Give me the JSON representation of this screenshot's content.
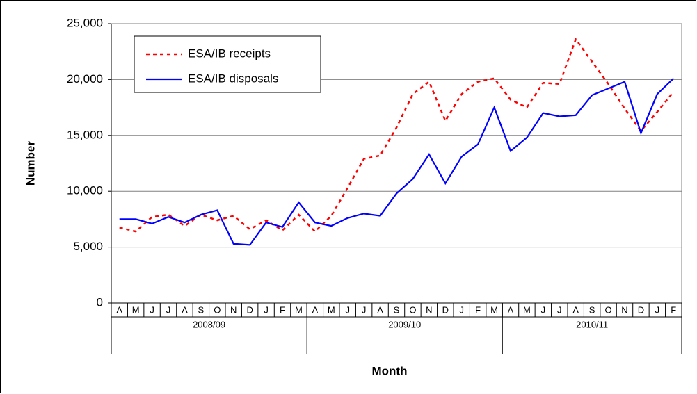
{
  "chart_data": {
    "type": "line",
    "xlabel": "Month",
    "ylabel": "Number",
    "categories": [
      "A",
      "M",
      "J",
      "J",
      "A",
      "S",
      "O",
      "N",
      "D",
      "J",
      "F",
      "M",
      "A",
      "M",
      "J",
      "J",
      "A",
      "S",
      "O",
      "N",
      "D",
      "J",
      "F",
      "M",
      "A",
      "M",
      "J",
      "J",
      "A",
      "S",
      "O",
      "N",
      "D",
      "J",
      "F"
    ],
    "x_groups": [
      {
        "label": "2008/09",
        "span": 12
      },
      {
        "label": "2009/10",
        "span": 12
      },
      {
        "label": "2010/11",
        "span": 11
      }
    ],
    "series": [
      {
        "name": "ESA/IB receipts",
        "color": "#ff0000",
        "dash": true,
        "values": [
          6750,
          6400,
          7700,
          7900,
          6900,
          7900,
          7400,
          7800,
          6600,
          7400,
          6500,
          7900,
          6400,
          7800,
          10300,
          12900,
          13200,
          15700,
          18700,
          19800,
          16300,
          18700,
          19800,
          20100,
          18200,
          17500,
          19700,
          19600,
          23600,
          21600,
          19600,
          17400,
          15400,
          17100,
          18900
        ]
      },
      {
        "name": "ESA/IB disposals",
        "color": "#0000ff",
        "dash": false,
        "values": [
          7500,
          7500,
          7100,
          7700,
          7200,
          7900,
          8300,
          5300,
          5200,
          7200,
          6800,
          9000,
          7200,
          6900,
          7600,
          8000,
          7800,
          9800,
          11100,
          13300,
          10700,
          13100,
          14200,
          17500,
          13600,
          14800,
          17000,
          16700,
          16800,
          18600,
          19200,
          19800,
          15200,
          18700,
          20100
        ]
      }
    ],
    "ylim": [
      0,
      25000
    ],
    "yticks": [
      0,
      {
        "value": 5000,
        "label": "5,000"
      },
      {
        "value": 10000,
        "label": "10,000"
      },
      {
        "value": 15000,
        "label": "15,000"
      },
      {
        "value": 20000,
        "label": "20,000"
      },
      {
        "value": 25000,
        "label": "25,000"
      }
    ],
    "grid": true
  }
}
